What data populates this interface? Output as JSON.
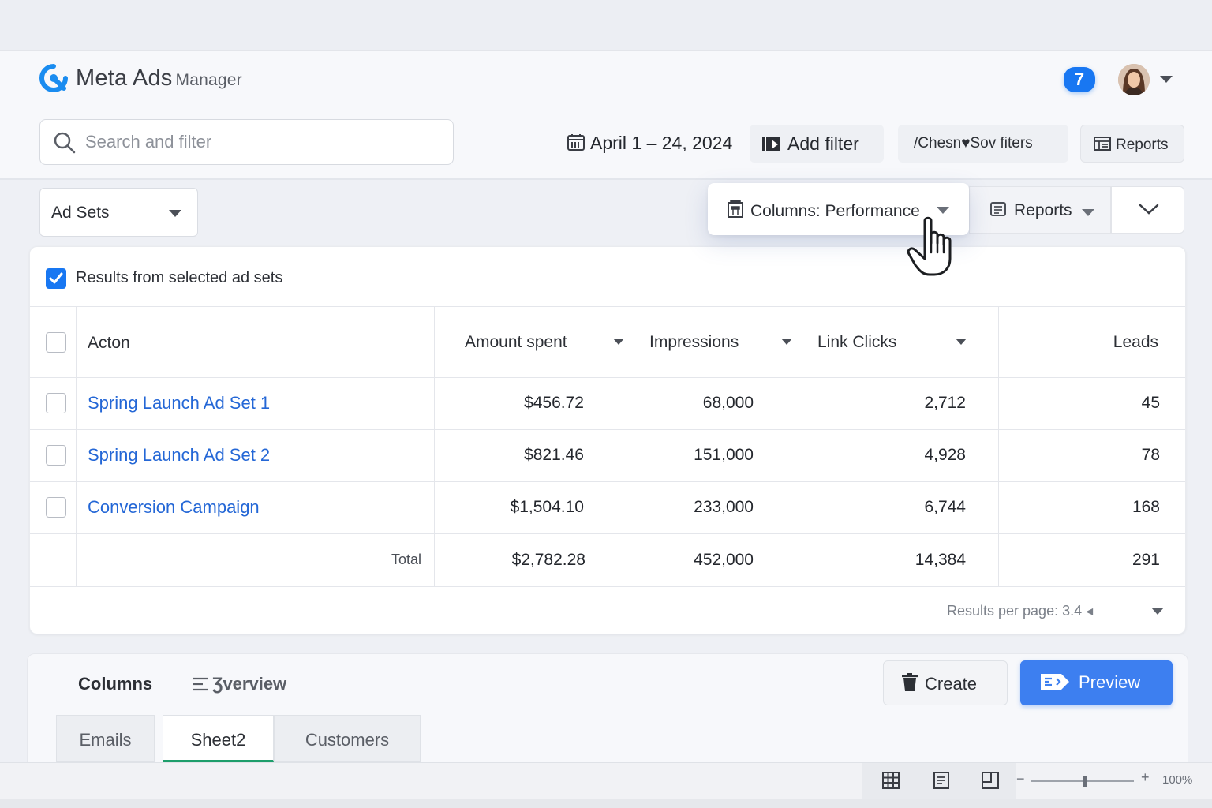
{
  "header": {
    "brand_main": "Meta Ads",
    "brand_sub": "Manager",
    "notification_count": "7"
  },
  "toolbar": {
    "search_placeholder": "Search and filter",
    "date_range": "April 1 – 24, 2024",
    "add_filter": "Add filter",
    "saved_filters": "/Chesn♥Sov fiters",
    "reports": "Reports"
  },
  "controls": {
    "level_select": "Ad Sets",
    "columns_preset": "Columns: Performance",
    "reports": "Reports"
  },
  "table": {
    "selection_label": "Results from selected ad sets",
    "columns": [
      "Acton",
      "Amount spent",
      "Impressions",
      "Link Clicks",
      "Leads"
    ],
    "rows": [
      {
        "name": "Spring Launch Ad Set 1",
        "amount": "$456.72",
        "impressions": "68,000",
        "clicks": "2,712",
        "leads": "45"
      },
      {
        "name": "Spring Launch Ad Set 2",
        "amount": "$821.46",
        "impressions": "151,000",
        "clicks": "4,928",
        "leads": "78"
      },
      {
        "name": "Conversion Campaign",
        "amount": "$1,504.10",
        "impressions": "233,000",
        "clicks": "6,744",
        "leads": "168"
      }
    ],
    "total": {
      "label": "Total",
      "amount": "$2,782.28",
      "impressions": "452,000",
      "clicks": "14,384",
      "leads": "291"
    },
    "pager": "Results per page: 3.4"
  },
  "bottom_panel": {
    "columns_label": "Columns",
    "overview_label": "Ʒverview",
    "create": "Create",
    "preview": "Preview",
    "tabs": [
      "Emails",
      "Sheet2",
      "Customers"
    ],
    "active_tab": "Sheet2"
  },
  "statusbar": {
    "zoom_minus": "−",
    "zoom_plus": "+",
    "zoom_level": "100%"
  },
  "colors": {
    "accent": "#1877f2",
    "link": "#2467d6",
    "preview_button": "#3d7ff0",
    "active_tab_underline": "#1e9e6b"
  },
  "icons": [
    "logo-icon",
    "search-icon",
    "calendar-icon",
    "add-filter-icon",
    "reports-icon",
    "columns-icon",
    "chevron-down-icon",
    "hand-cursor-icon",
    "checkmark-icon",
    "list-icon",
    "trash-icon",
    "preview-icon",
    "grid-view-icon",
    "page-view-icon",
    "page-break-icon"
  ]
}
